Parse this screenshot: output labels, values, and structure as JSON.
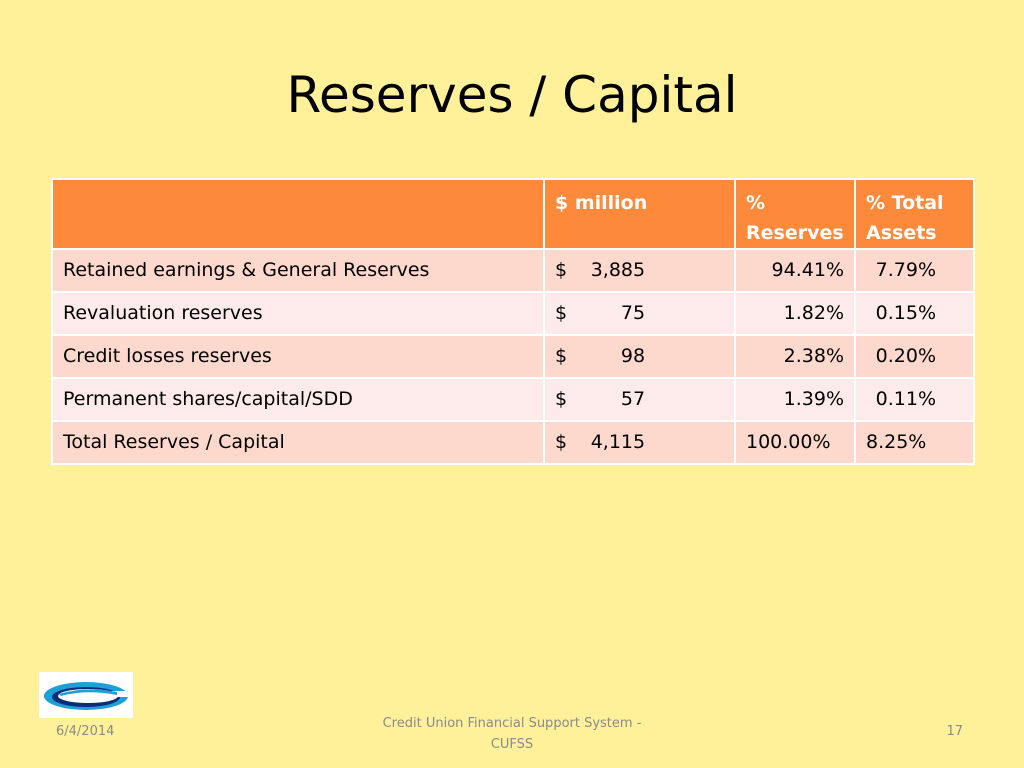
{
  "slide": {
    "title": "Reserves / Capital"
  },
  "table": {
    "headers": [
      "",
      "$ million",
      "% Reserves",
      "% Total Assets"
    ],
    "header_lines": {
      "col2": [
        "$ million"
      ],
      "col3": [
        "%",
        "Reserves"
      ],
      "col4": [
        "% Total",
        "Assets"
      ]
    },
    "rows": [
      {
        "label": "Retained earnings & General Reserves",
        "currency": "$",
        "amount": "3,885",
        "pct_reserves": "94.41%",
        "pct_assets": "7.79%"
      },
      {
        "label": "Revaluation reserves",
        "currency": "$",
        "amount": "75",
        "pct_reserves": "1.82%",
        "pct_assets": "0.15%"
      },
      {
        "label": "Credit losses reserves",
        "currency": "$",
        "amount": "98",
        "pct_reserves": "2.38%",
        "pct_assets": "0.20%"
      },
      {
        "label": "Permanent shares/capital/SDD",
        "currency": "$",
        "amount": "57",
        "pct_reserves": "1.39%",
        "pct_assets": "0.11%"
      },
      {
        "label": "Total Reserves / Capital",
        "currency": "$",
        "amount": "4,115",
        "pct_reserves": "100.00%",
        "pct_assets": "8.25%"
      }
    ]
  },
  "footer": {
    "date": "6/4/2014",
    "center_line1": "Credit Union Financial Support System -",
    "center_line2": "CUFSS",
    "page_number": "17"
  },
  "logo": {
    "icon": "cufss-logo-icon"
  },
  "colors": {
    "background": "#fff199",
    "header_fill": "#fd8a3a",
    "row_dark": "#fdd8cc",
    "row_light": "#fdeaea",
    "logo_blue": "#1f9fd8",
    "logo_navy": "#0a2f78"
  }
}
